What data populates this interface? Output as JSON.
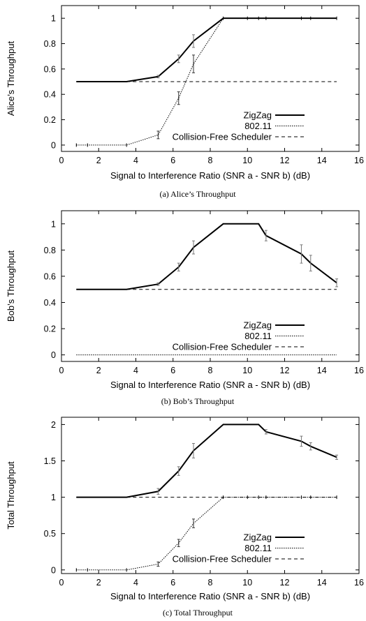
{
  "chart_data": [
    {
      "type": "line",
      "caption": "(a) Alice’s Throughput",
      "xlabel": "Signal to Interference Ratio (SNR a - SNR b) (dB)",
      "ylabel": "Alice’s Throughput",
      "xlim": [
        0,
        16
      ],
      "ylim": [
        -0.05,
        1.1
      ],
      "xticks": [
        0,
        2,
        4,
        6,
        8,
        10,
        12,
        14,
        16
      ],
      "yticks": [
        0,
        0.2,
        0.4,
        0.6,
        0.8,
        1
      ],
      "legend_position": "bottom-right",
      "series": [
        {
          "name": "ZigZag",
          "style": "solid",
          "x": [
            0.8,
            1.4,
            3.5,
            5.2,
            6.3,
            7.1,
            8.7,
            10.0,
            10.6,
            11.0,
            12.9,
            13.4,
            14.8
          ],
          "y": [
            0.5,
            0.5,
            0.5,
            0.54,
            0.68,
            0.82,
            1.0,
            1.0,
            1.0,
            1.0,
            1.0,
            1.0,
            1.0
          ],
          "err": [
            0,
            0,
            0,
            0.01,
            0.03,
            0.05,
            0,
            0,
            0,
            0,
            0,
            0,
            0
          ]
        },
        {
          "name": "802.11",
          "style": "dotted",
          "x": [
            0.8,
            1.4,
            3.5,
            5.2,
            6.3,
            7.1,
            8.7,
            10.0,
            10.6,
            11.0,
            12.9,
            13.4,
            14.8
          ],
          "y": [
            0,
            0,
            0,
            0.08,
            0.37,
            0.64,
            1.0,
            1.0,
            1.0,
            1.0,
            1.0,
            1.0,
            1.0
          ],
          "err": [
            0,
            0,
            0,
            0.03,
            0.05,
            0.07,
            0,
            0,
            0,
            0,
            0,
            0,
            0
          ]
        },
        {
          "name": "Collision-Free Scheduler",
          "style": "dashed",
          "x": [
            0.8,
            14.8
          ],
          "y": [
            0.5,
            0.5
          ]
        }
      ]
    },
    {
      "type": "line",
      "caption": "(b) Bob’s Throughput",
      "xlabel": "Signal to Interference Ratio (SNR a - SNR b) (dB)",
      "ylabel": "Bob’s Throughput",
      "xlim": [
        0,
        16
      ],
      "ylim": [
        -0.05,
        1.1
      ],
      "xticks": [
        0,
        2,
        4,
        6,
        8,
        10,
        12,
        14,
        16
      ],
      "yticks": [
        0,
        0.2,
        0.4,
        0.6,
        0.8,
        1
      ],
      "legend_position": "bottom-right",
      "series": [
        {
          "name": "ZigZag",
          "style": "solid",
          "x": [
            0.8,
            1.4,
            3.5,
            5.2,
            6.3,
            7.1,
            8.7,
            10.0,
            10.6,
            11.0,
            12.9,
            13.4,
            14.8
          ],
          "y": [
            0.5,
            0.5,
            0.5,
            0.54,
            0.67,
            0.82,
            1.0,
            1.0,
            1.0,
            0.91,
            0.77,
            0.7,
            0.55
          ],
          "err": [
            0,
            0,
            0,
            0.01,
            0.03,
            0.05,
            0,
            0,
            0,
            0.04,
            0.07,
            0.06,
            0.03
          ]
        },
        {
          "name": "802.11",
          "style": "dotted",
          "x": [
            0.8,
            14.8
          ],
          "y": [
            0,
            0
          ]
        },
        {
          "name": "Collision-Free Scheduler",
          "style": "dashed",
          "x": [
            0.8,
            14.8
          ],
          "y": [
            0.5,
            0.5
          ]
        }
      ]
    },
    {
      "type": "line",
      "caption": "(c) Total Throughput",
      "xlabel": "Signal to Interference Ratio (SNR a - SNR b) (dB)",
      "ylabel": "Total Throughput",
      "xlim": [
        0,
        16
      ],
      "ylim": [
        -0.05,
        2.1
      ],
      "xticks": [
        0,
        2,
        4,
        6,
        8,
        10,
        12,
        14,
        16
      ],
      "yticks": [
        0,
        0.5,
        1,
        1.5,
        2
      ],
      "legend_position": "bottom-right",
      "series": [
        {
          "name": "ZigZag",
          "style": "solid",
          "x": [
            0.8,
            1.4,
            3.5,
            5.2,
            6.3,
            7.1,
            8.7,
            10.0,
            10.6,
            11.0,
            12.9,
            13.4,
            14.8
          ],
          "y": [
            1.0,
            1.0,
            1.0,
            1.08,
            1.36,
            1.64,
            2.0,
            2.0,
            2.0,
            1.9,
            1.77,
            1.7,
            1.55
          ],
          "err": [
            0,
            0,
            0,
            0.04,
            0.06,
            0.1,
            0,
            0,
            0,
            0.03,
            0.07,
            0.05,
            0.03
          ]
        },
        {
          "name": "802.11",
          "style": "dotted",
          "x": [
            0.8,
            1.4,
            3.5,
            5.2,
            6.3,
            7.1,
            8.7,
            10.0,
            10.6,
            11.0,
            12.9,
            13.4,
            14.8
          ],
          "y": [
            0.0,
            0.0,
            0.0,
            0.08,
            0.37,
            0.64,
            1.0,
            1.0,
            1.0,
            1.0,
            1.0,
            1.0,
            1.0
          ],
          "err": [
            0,
            0,
            0,
            0.03,
            0.05,
            0.06,
            0,
            0,
            0,
            0,
            0,
            0,
            0
          ]
        },
        {
          "name": "Collision-Free Scheduler",
          "style": "dashed",
          "x": [
            0.8,
            14.8
          ],
          "y": [
            1.0,
            1.0
          ]
        }
      ]
    }
  ]
}
